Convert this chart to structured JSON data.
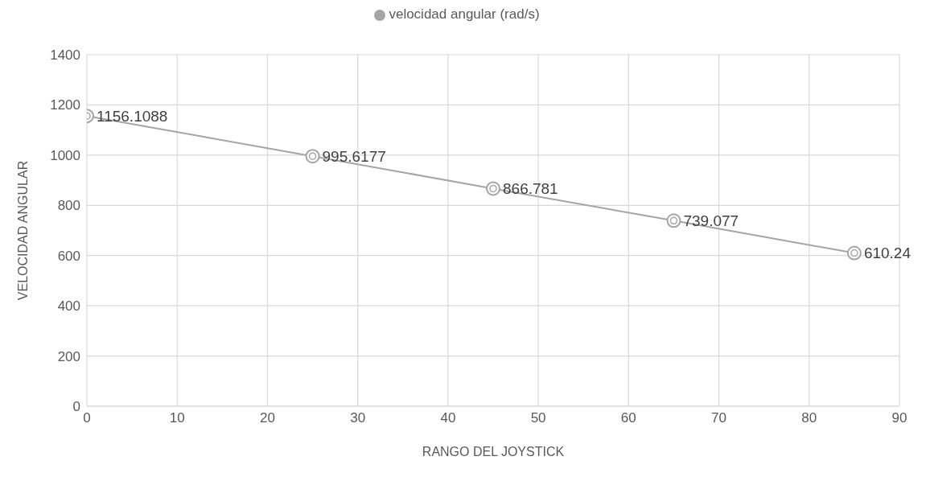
{
  "chart_data": {
    "type": "line",
    "xlabel": "RANGO DEL JOYSTICK",
    "ylabel": "VELOCIDAD ANGULAR",
    "x": [
      0,
      25,
      45,
      65,
      85
    ],
    "series": [
      {
        "name": "velocidad angular (rad/s)",
        "color": "#a5a5a5",
        "values": [
          1156.1088,
          995.6177,
          866.781,
          739.077,
          610.24
        ]
      }
    ],
    "xlim": [
      0,
      90
    ],
    "xticks": [
      0,
      10,
      20,
      30,
      40,
      50,
      60,
      70,
      80,
      90
    ],
    "ylim": [
      0,
      1400
    ],
    "yticks": [
      0,
      200,
      400,
      600,
      800,
      1000,
      1200,
      1400
    ],
    "grid": true,
    "legend": "top",
    "marker": "circle",
    "line_style": "solid",
    "data_labels": true
  }
}
